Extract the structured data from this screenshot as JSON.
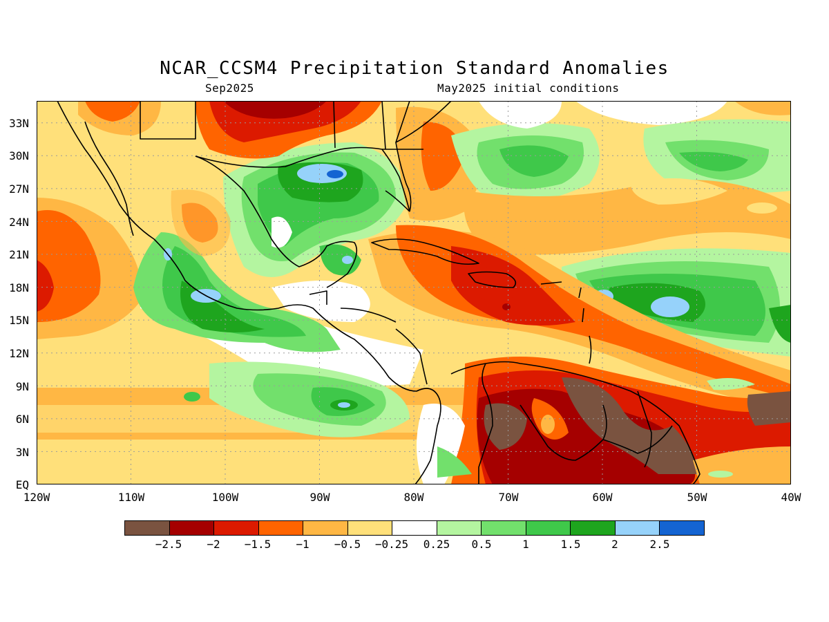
{
  "title": "NCAR_CCSM4 Precipitation Standard Anomalies",
  "valid_month": "Sep2025",
  "initial_conditions": "May2025 initial conditions",
  "map": {
    "projection": "lat-lon",
    "lon_range": [
      -120,
      -40
    ],
    "lat_range": [
      0,
      35
    ],
    "grid": "dotted gray",
    "lat_labels": [
      "33N",
      "30N",
      "27N",
      "24N",
      "21N",
      "18N",
      "15N",
      "12N",
      "9N",
      "6N",
      "3N",
      "EQ"
    ],
    "lon_labels": [
      "120W",
      "110W",
      "100W",
      "90W",
      "80W",
      "70W",
      "60W",
      "50W",
      "40W"
    ]
  },
  "colorbar": {
    "colors": [
      "#7a5340",
      "#a50000",
      "#dc1a00",
      "#ff6400",
      "#ffb744",
      "#ffe07a",
      "#ffffff",
      "#b4f5a0",
      "#72e06c",
      "#3fc84a",
      "#1ea51e",
      "#96d2fa",
      "#1464d2"
    ],
    "labels": [
      "−2.5",
      "−2",
      "−1.5",
      "−1",
      "−0.5",
      "−0.25",
      "0.25",
      "0.5",
      "1",
      "1.5",
      "2",
      "2.5"
    ]
  }
}
